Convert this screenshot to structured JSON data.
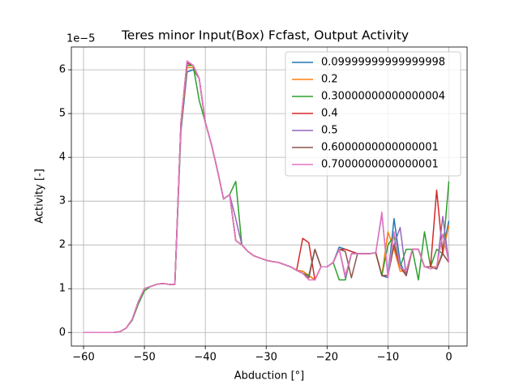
{
  "chart_data": {
    "type": "line",
    "title": "Teres minor Input(Box) Fcfast, Output Activity",
    "xlabel": "Abduction [°]",
    "ylabel": "Activity [-]",
    "offset_text": "1e−5",
    "x": [
      -60,
      -59,
      -58,
      -57,
      -56,
      -55,
      -54,
      -53,
      -52,
      -51,
      -50,
      -49,
      -48,
      -47,
      -46,
      -45,
      -44,
      -43,
      -42,
      -41,
      -40,
      -39,
      -38,
      -37,
      -36,
      -35,
      -34,
      -33,
      -32,
      -31,
      -30,
      -29,
      -28,
      -27,
      -26,
      -25,
      -24,
      -23,
      -22,
      -21,
      -20,
      -19,
      -18,
      -17,
      -16,
      -15,
      -14,
      -13,
      -12,
      -11,
      -10,
      -9,
      -8,
      -7,
      -6,
      -5,
      -4,
      -3,
      -2,
      -1,
      0
    ],
    "series": [
      {
        "name": "0.09999999999999998",
        "color": "#1f77b4",
        "values": [
          0,
          0,
          0,
          0,
          0,
          0,
          0.02,
          0.1,
          0.3,
          0.7,
          1.0,
          1.05,
          1.1,
          1.12,
          1.1,
          1.1,
          4.6,
          5.95,
          6.0,
          5.8,
          4.8,
          4.3,
          3.7,
          3.05,
          3.15,
          2.1,
          2.0,
          1.85,
          1.75,
          1.7,
          1.65,
          1.62,
          1.6,
          1.55,
          1.5,
          1.42,
          1.4,
          1.3,
          1.2,
          1.5,
          1.5,
          1.6,
          1.95,
          1.9,
          1.85,
          1.8,
          1.8,
          1.8,
          1.82,
          1.3,
          1.25,
          2.6,
          1.6,
          1.3,
          1.9,
          1.9,
          1.5,
          1.5,
          1.45,
          1.85,
          2.55
        ]
      },
      {
        "name": "0.2",
        "color": "#ff7f0e",
        "values": [
          0,
          0,
          0,
          0,
          0,
          0,
          0.02,
          0.1,
          0.3,
          0.68,
          1.0,
          1.05,
          1.1,
          1.12,
          1.1,
          1.1,
          4.7,
          6.05,
          6.05,
          5.8,
          4.8,
          4.3,
          3.7,
          3.05,
          3.15,
          2.1,
          2.0,
          1.85,
          1.75,
          1.7,
          1.65,
          1.62,
          1.6,
          1.55,
          1.5,
          1.42,
          1.4,
          1.3,
          1.2,
          1.5,
          1.5,
          1.6,
          1.9,
          1.3,
          1.8,
          1.8,
          1.8,
          1.8,
          1.82,
          1.3,
          2.3,
          1.9,
          1.4,
          1.4,
          1.9,
          1.9,
          1.5,
          1.5,
          1.5,
          1.8,
          2.45
        ]
      },
      {
        "name": "0.30000000000000004",
        "color": "#2ca02c",
        "values": [
          0,
          0,
          0,
          0,
          0,
          0,
          0.02,
          0.1,
          0.28,
          0.65,
          0.95,
          1.05,
          1.1,
          1.12,
          1.1,
          1.1,
          4.8,
          6.1,
          6.1,
          5.3,
          4.8,
          4.3,
          3.7,
          3.05,
          3.15,
          3.45,
          2.0,
          1.85,
          1.75,
          1.7,
          1.65,
          1.62,
          1.6,
          1.55,
          1.5,
          1.42,
          1.35,
          1.3,
          1.9,
          1.5,
          1.5,
          1.6,
          1.2,
          1.2,
          1.8,
          1.8,
          1.8,
          1.8,
          1.82,
          1.3,
          2.0,
          2.2,
          1.5,
          1.9,
          1.9,
          1.2,
          2.3,
          1.5,
          1.9,
          1.8,
          3.45
        ]
      },
      {
        "name": "0.4",
        "color": "#d62728",
        "values": [
          0,
          0,
          0,
          0,
          0,
          0,
          0.02,
          0.1,
          0.3,
          0.7,
          1.0,
          1.05,
          1.1,
          1.12,
          1.1,
          1.1,
          4.8,
          6.15,
          6.1,
          5.8,
          4.8,
          4.3,
          3.7,
          3.05,
          3.15,
          2.1,
          2.0,
          1.85,
          1.75,
          1.7,
          1.65,
          1.62,
          1.6,
          1.55,
          1.5,
          1.42,
          2.15,
          2.05,
          1.2,
          1.5,
          1.5,
          1.6,
          1.9,
          1.9,
          1.85,
          1.8,
          1.8,
          1.8,
          1.82,
          1.3,
          1.3,
          2.0,
          1.5,
          1.3,
          1.9,
          1.9,
          1.5,
          1.5,
          3.25,
          1.8,
          1.6
        ]
      },
      {
        "name": "0.5",
        "color": "#9467bd",
        "values": [
          0,
          0,
          0,
          0,
          0,
          0,
          0.02,
          0.1,
          0.3,
          0.7,
          1.0,
          1.05,
          1.1,
          1.12,
          1.1,
          1.1,
          4.8,
          6.18,
          6.1,
          5.8,
          4.8,
          4.3,
          3.7,
          3.05,
          3.15,
          2.6,
          2.0,
          1.85,
          1.75,
          1.7,
          1.65,
          1.62,
          1.6,
          1.55,
          1.5,
          1.42,
          1.35,
          1.25,
          1.9,
          1.5,
          1.5,
          1.6,
          1.9,
          1.25,
          1.8,
          1.8,
          1.8,
          1.8,
          1.82,
          2.7,
          1.3,
          2.0,
          2.4,
          1.3,
          1.9,
          1.9,
          1.5,
          1.5,
          1.45,
          2.65,
          1.6
        ]
      },
      {
        "name": "0.6000000000000001",
        "color": "#8c564b",
        "values": [
          0,
          0,
          0,
          0,
          0,
          0,
          0.02,
          0.1,
          0.3,
          0.7,
          1.0,
          1.05,
          1.1,
          1.12,
          1.1,
          1.1,
          4.8,
          6.2,
          6.1,
          5.8,
          4.8,
          4.3,
          3.7,
          3.05,
          3.15,
          2.1,
          2.0,
          1.85,
          1.75,
          1.7,
          1.65,
          1.62,
          1.6,
          1.55,
          1.5,
          1.42,
          1.35,
          1.25,
          1.9,
          1.5,
          1.5,
          1.6,
          1.9,
          1.85,
          1.25,
          1.8,
          1.8,
          1.8,
          1.82,
          1.3,
          1.3,
          2.0,
          1.5,
          1.3,
          1.9,
          1.9,
          1.5,
          1.5,
          1.45,
          1.8,
          1.6
        ]
      },
      {
        "name": "0.7000000000000001",
        "color": "#e377c2",
        "values": [
          0,
          0,
          0,
          0,
          0,
          0,
          0.02,
          0.1,
          0.3,
          0.7,
          1.0,
          1.05,
          1.1,
          1.12,
          1.1,
          1.1,
          4.8,
          6.2,
          6.1,
          5.8,
          4.8,
          4.3,
          3.7,
          3.05,
          3.15,
          2.1,
          2.0,
          1.85,
          1.75,
          1.7,
          1.65,
          1.62,
          1.6,
          1.55,
          1.5,
          1.42,
          1.35,
          1.2,
          1.2,
          1.5,
          1.5,
          1.6,
          1.9,
          1.3,
          1.8,
          1.8,
          1.8,
          1.8,
          1.82,
          2.75,
          1.25,
          2.3,
          1.5,
          1.4,
          1.9,
          1.9,
          1.5,
          1.45,
          1.5,
          2.25,
          1.6
        ]
      }
    ],
    "xlim": [
      -62,
      3
    ],
    "xticks": [
      {
        "value": -60,
        "label": "−60"
      },
      {
        "value": -50,
        "label": "−50"
      },
      {
        "value": -40,
        "label": "−40"
      },
      {
        "value": -30,
        "label": "−30"
      },
      {
        "value": -20,
        "label": "−20"
      },
      {
        "value": -10,
        "label": "−10"
      },
      0
    ],
    "ylim": [
      -0.31,
      6.52
    ],
    "yticks": [
      0,
      1,
      2,
      3,
      4,
      5,
      6
    ],
    "grid": true,
    "legend": "upper right"
  }
}
